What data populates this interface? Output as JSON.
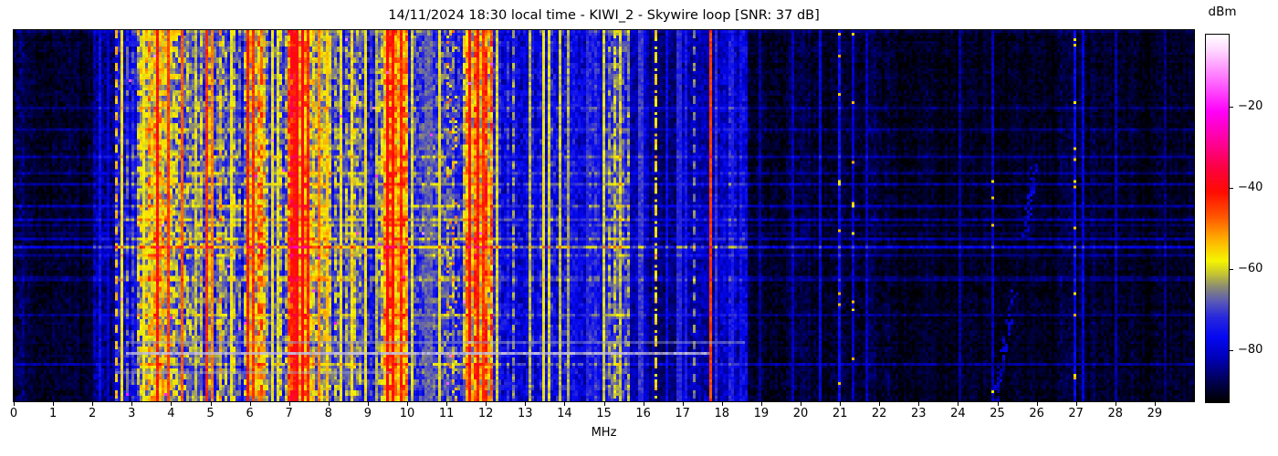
{
  "title": "14/11/2024 18:30 local time - KIWI_2 - Skywire loop [SNR: 37 dB]",
  "xaxis": {
    "label": "MHz",
    "ticks": [
      0,
      1,
      2,
      3,
      4,
      5,
      6,
      7,
      8,
      9,
      10,
      11,
      12,
      13,
      14,
      15,
      16,
      17,
      18,
      19,
      20,
      21,
      22,
      23,
      24,
      25,
      26,
      27,
      28,
      29
    ]
  },
  "colorbar": {
    "unit": "dBm",
    "tick_values": [
      -20,
      -40,
      -60,
      -80
    ],
    "tick_labels": [
      "−20",
      "−40",
      "−60",
      "−80"
    ],
    "vmin": -93,
    "vmax": -2
  },
  "chart_data": {
    "type": "heatmap",
    "title": "14/11/2024 18:30 local time - KIWI_2 - Skywire loop [SNR: 37 dB]",
    "xlabel": "MHz",
    "x_range": [
      0,
      30
    ],
    "x_ticks": [
      0,
      1,
      2,
      3,
      4,
      5,
      6,
      7,
      8,
      9,
      10,
      11,
      12,
      13,
      14,
      15,
      16,
      17,
      18,
      19,
      20,
      21,
      22,
      23,
      24,
      25,
      26,
      27,
      28,
      29
    ],
    "ylabel": "",
    "value_label": "dBm",
    "value_range": [
      -93,
      -2
    ],
    "colorbar_ticks": [
      -20,
      -40,
      -60,
      -80
    ],
    "legend": "none",
    "grid": false,
    "colormap": [
      [
        -93,
        "#000000"
      ],
      [
        -88,
        "#000050"
      ],
      [
        -82,
        "#0000bb"
      ],
      [
        -77,
        "#0508f0"
      ],
      [
        -72,
        "#2828dd"
      ],
      [
        -68,
        "#5b5bb6"
      ],
      [
        -64.5,
        "#8b8b72"
      ],
      [
        -61,
        "#c9c92e"
      ],
      [
        -58,
        "#f5f500"
      ],
      [
        -53,
        "#ffb300"
      ],
      [
        -47,
        "#ff5500"
      ],
      [
        -41,
        "#ff0c00"
      ],
      [
        -35,
        "#fb0141"
      ],
      [
        -28,
        "#fe02a0"
      ],
      [
        -21,
        "#ff00f8"
      ],
      [
        -13,
        "#ff70ff"
      ],
      [
        -6,
        "#ffd4ff"
      ],
      [
        -2,
        "#ffffff"
      ]
    ],
    "bands": [
      {
        "f0": 0.0,
        "f1": 0.3,
        "base": -87,
        "stripe": 4
      },
      {
        "f0": 0.3,
        "f1": 2.05,
        "base": -90.5,
        "stripe": 2.6
      },
      {
        "f0": 2.05,
        "f1": 2.55,
        "base": -84,
        "stripe": 5
      },
      {
        "f0": 2.55,
        "f1": 3.15,
        "base": -74,
        "stripe": 9
      },
      {
        "f0": 3.15,
        "f1": 4.4,
        "base": -62,
        "stripe": 13
      },
      {
        "f0": 4.4,
        "f1": 4.8,
        "base": -70,
        "stripe": 10
      },
      {
        "f0": 4.8,
        "f1": 5.35,
        "base": -64,
        "stripe": 12
      },
      {
        "f0": 5.35,
        "f1": 5.85,
        "base": -69,
        "stripe": 10
      },
      {
        "f0": 5.85,
        "f1": 6.4,
        "base": -57,
        "stripe": 12
      },
      {
        "f0": 6.4,
        "f1": 6.95,
        "base": -67,
        "stripe": 10
      },
      {
        "f0": 6.95,
        "f1": 7.55,
        "base": -49,
        "stripe": 11
      },
      {
        "f0": 7.55,
        "f1": 8.1,
        "base": -61,
        "stripe": 11
      },
      {
        "f0": 8.1,
        "f1": 9.35,
        "base": -70,
        "stripe": 10
      },
      {
        "f0": 9.35,
        "f1": 10.05,
        "base": -54,
        "stripe": 11
      },
      {
        "f0": 10.05,
        "f1": 11.45,
        "base": -71,
        "stripe": 9
      },
      {
        "f0": 11.45,
        "f1": 12.15,
        "base": -56,
        "stripe": 12
      },
      {
        "f0": 12.15,
        "f1": 13.65,
        "base": -76,
        "stripe": 7
      },
      {
        "f0": 13.65,
        "f1": 14.15,
        "base": -71,
        "stripe": 9
      },
      {
        "f0": 14.15,
        "f1": 15.05,
        "base": -78,
        "stripe": 6
      },
      {
        "f0": 15.05,
        "f1": 15.65,
        "base": -71,
        "stripe": 9
      },
      {
        "f0": 15.65,
        "f1": 16.15,
        "base": -82,
        "stripe": 4
      },
      {
        "f0": 16.15,
        "f1": 17.0,
        "base": -86,
        "stripe": 3.5
      },
      {
        "f0": 17.0,
        "f1": 18.15,
        "base": -83,
        "stripe": 5
      },
      {
        "f0": 18.15,
        "f1": 18.65,
        "base": -79,
        "stripe": 6
      },
      {
        "f0": 18.65,
        "f1": 22.3,
        "base": -89.5,
        "stripe": 3
      },
      {
        "f0": 22.3,
        "f1": 26.5,
        "base": -91,
        "stripe": 2.2
      },
      {
        "f0": 26.5,
        "f1": 27.5,
        "base": -89.5,
        "stripe": 3
      },
      {
        "f0": 27.5,
        "f1": 30.0,
        "base": -91,
        "stripe": 2.2
      }
    ],
    "carriers": [
      {
        "f": 2.2,
        "level": -77,
        "w": 0.06
      },
      {
        "f": 2.38,
        "level": -80,
        "w": 0.05
      },
      {
        "f": 2.62,
        "level": -54,
        "w": 0.07,
        "style": "dash"
      },
      {
        "f": 2.74,
        "level": -57,
        "w": 0.06
      },
      {
        "f": 3.33,
        "level": -58,
        "w": 0.05
      },
      {
        "f": 3.64,
        "level": -41,
        "w": 0.06
      },
      {
        "f": 3.95,
        "level": -45,
        "w": 0.06
      },
      {
        "f": 4.27,
        "level": -47,
        "w": 0.06
      },
      {
        "f": 4.6,
        "level": -62,
        "w": 0.05
      },
      {
        "f": 4.88,
        "level": -44,
        "w": 0.06
      },
      {
        "f": 5.06,
        "level": -50,
        "w": 0.05
      },
      {
        "f": 5.5,
        "level": -58,
        "w": 0.05
      },
      {
        "f": 5.95,
        "level": -42,
        "w": 0.07
      },
      {
        "f": 6.07,
        "level": -44,
        "w": 0.06
      },
      {
        "f": 6.55,
        "level": -58,
        "w": 0.05
      },
      {
        "f": 6.75,
        "level": -60,
        "w": 0.05
      },
      {
        "f": 7.1,
        "level": -42,
        "w": 0.06
      },
      {
        "f": 7.22,
        "level": -38,
        "w": 0.1
      },
      {
        "f": 7.35,
        "level": -39,
        "w": 0.09
      },
      {
        "f": 7.48,
        "level": -43,
        "w": 0.05
      },
      {
        "f": 7.75,
        "level": -50,
        "w": 0.06
      },
      {
        "f": 8.0,
        "level": -55,
        "w": 0.05
      },
      {
        "f": 8.3,
        "level": -58,
        "w": 0.05
      },
      {
        "f": 8.6,
        "level": -56,
        "w": 0.05
      },
      {
        "f": 8.95,
        "level": -58,
        "w": 0.06
      },
      {
        "f": 9.2,
        "level": -62,
        "w": 0.05
      },
      {
        "f": 9.5,
        "level": -40,
        "w": 0.07
      },
      {
        "f": 9.65,
        "level": -41,
        "w": 0.07
      },
      {
        "f": 9.82,
        "level": -43,
        "w": 0.06
      },
      {
        "f": 10.15,
        "level": -60,
        "w": 0.05
      },
      {
        "f": 10.55,
        "level": -68,
        "w": 0.2
      },
      {
        "f": 10.8,
        "level": -58,
        "w": 0.05
      },
      {
        "f": 11.15,
        "level": -58,
        "w": 0.25,
        "style": "dots"
      },
      {
        "f": 11.6,
        "level": -41,
        "w": 0.07
      },
      {
        "f": 11.78,
        "level": -42,
        "w": 0.07
      },
      {
        "f": 11.95,
        "level": -44,
        "w": 0.06
      },
      {
        "f": 12.3,
        "level": -60,
        "w": 0.05
      },
      {
        "f": 12.7,
        "level": -63,
        "w": 0.05,
        "style": "dash"
      },
      {
        "f": 13.1,
        "level": -62,
        "w": 0.05
      },
      {
        "f": 13.5,
        "level": -58,
        "w": 0.05
      },
      {
        "f": 13.62,
        "level": -60,
        "w": 0.05
      },
      {
        "f": 13.9,
        "level": -61,
        "w": 0.06
      },
      {
        "f": 14.08,
        "level": -64,
        "w": 0.05
      },
      {
        "f": 14.55,
        "level": -72,
        "w": 0.05
      },
      {
        "f": 15.0,
        "level": -60,
        "w": 0.05
      },
      {
        "f": 15.25,
        "level": -60,
        "w": 0.05,
        "style": "dash"
      },
      {
        "f": 15.45,
        "level": -62,
        "w": 0.05
      },
      {
        "f": 15.95,
        "level": -71,
        "w": 0.15
      },
      {
        "f": 16.33,
        "level": -56,
        "w": 0.07,
        "style": "dashdot"
      },
      {
        "f": 16.6,
        "level": -78,
        "w": 0.05
      },
      {
        "f": 16.9,
        "level": -73,
        "w": 0.1
      },
      {
        "f": 17.1,
        "level": -75,
        "w": 0.05
      },
      {
        "f": 17.33,
        "level": -65,
        "w": 0.05,
        "style": "dash"
      },
      {
        "f": 17.7,
        "level": -45,
        "w": 0.05
      },
      {
        "f": 17.85,
        "level": -72,
        "w": 0.05
      },
      {
        "f": 18.3,
        "level": -74,
        "w": 0.06
      },
      {
        "f": 18.45,
        "level": -76,
        "w": 0.06
      },
      {
        "f": 19.0,
        "level": -84,
        "w": 0.05
      },
      {
        "f": 19.8,
        "level": -82,
        "w": 0.05
      },
      {
        "f": 20.5,
        "level": -79,
        "w": 0.05
      },
      {
        "f": 21.0,
        "level": -77,
        "w": 0.1,
        "style": "sparseyellow"
      },
      {
        "f": 21.3,
        "level": -81,
        "w": 0.05,
        "style": "sparseyellow"
      },
      {
        "f": 21.65,
        "level": -82,
        "w": 0.05
      },
      {
        "f": 24.05,
        "level": -84,
        "w": 0.05
      },
      {
        "f": 24.85,
        "level": -82,
        "w": 0.05,
        "style": "sparseyellow"
      },
      {
        "f": 26.95,
        "level": -78,
        "w": 0.09,
        "style": "sparseyellow"
      },
      {
        "f": 27.2,
        "level": -80,
        "w": 0.06
      },
      {
        "f": 28.0,
        "level": -83,
        "w": 0.05
      },
      {
        "f": 29.3,
        "level": -86,
        "w": 0.04
      }
    ],
    "row_streaks": [
      {
        "y": 0.873,
        "f0": 2.85,
        "f1": 17.7,
        "blend": "#c3bede",
        "alpha": 0.8
      },
      {
        "y": 0.845,
        "f0": 2.85,
        "f1": 18.6,
        "blend": "#9aa0c8",
        "alpha": 0.45
      },
      {
        "y": 0.925,
        "f0": 2.6,
        "f1": 9.6,
        "blend": "#a8a8cc",
        "alpha": 0.4
      },
      {
        "y": 0.587,
        "f0": 0,
        "f1": 30,
        "boost": 12
      },
      {
        "y": 0.605,
        "f0": 0,
        "f1": 30,
        "boost": 5
      },
      {
        "y": 0.675,
        "f0": 0,
        "f1": 30,
        "boost": 5
      },
      {
        "y": 0.34,
        "f0": 0,
        "f1": 30,
        "boost": 5
      },
      {
        "y": 0.21,
        "f0": 0,
        "f1": 30,
        "boost": 4
      }
    ],
    "diagonals": [
      {
        "f0": 25.95,
        "y0": 0.36,
        "f1": 25.7,
        "y1": 0.56,
        "level": -81
      },
      {
        "f0": 25.45,
        "y0": 0.7,
        "f1": 24.95,
        "y1": 1.0,
        "level": -81
      }
    ],
    "noise_seed": 7
  }
}
